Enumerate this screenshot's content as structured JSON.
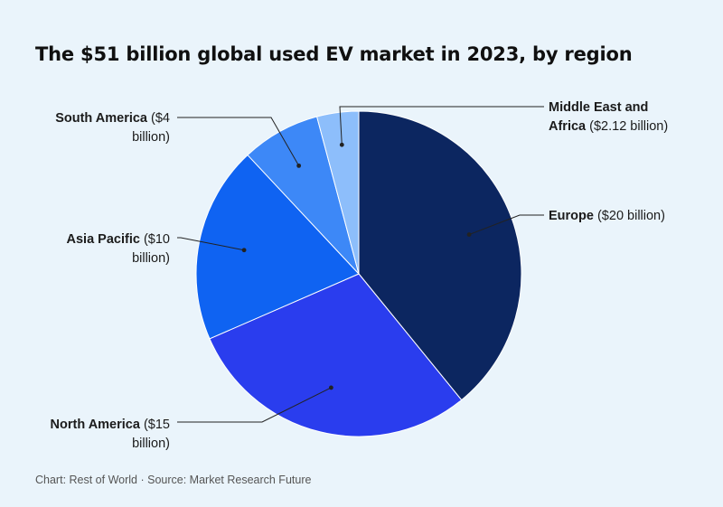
{
  "chart_data": {
    "type": "pie",
    "title": "The $51 billion global used EV market in 2023, by region",
    "start_category": "Europe",
    "direction": "clockwise",
    "slices": [
      {
        "label": "Europe",
        "value_text": "($20 billion)",
        "line1_name": "Europe",
        "line1_value": " ($20 billion)",
        "line2": "",
        "value": 20,
        "color": "#0c2660"
      },
      {
        "label": "North America",
        "value_text": "($15 billion)",
        "line1_name": "North America",
        "line1_value": " ($15",
        "line2": "billion)",
        "value": 15,
        "color": "#2a3dee"
      },
      {
        "label": "Asia Pacific",
        "value_text": "($10 billion)",
        "line1_name": "Asia Pacific",
        "line1_value": " ($10",
        "line2": "billion)",
        "value": 10,
        "color": "#0f63f2"
      },
      {
        "label": "South America",
        "value_text": "($4 billion)",
        "line1_name": "South America",
        "line1_value": " ($4",
        "line2": "billion)",
        "value": 4,
        "color": "#3d88f7"
      },
      {
        "label": "Middle East and Africa",
        "value_text": "($2.12 billion)",
        "line1_name": "Middle East and",
        "line1_value": "",
        "line2_name": "Africa",
        "line2": " ($2.12 billion)",
        "value": 2.12,
        "color": "#8dbefb"
      }
    ],
    "legend": "none"
  },
  "footer": "Chart: Rest of World · Source: Market Research Future"
}
